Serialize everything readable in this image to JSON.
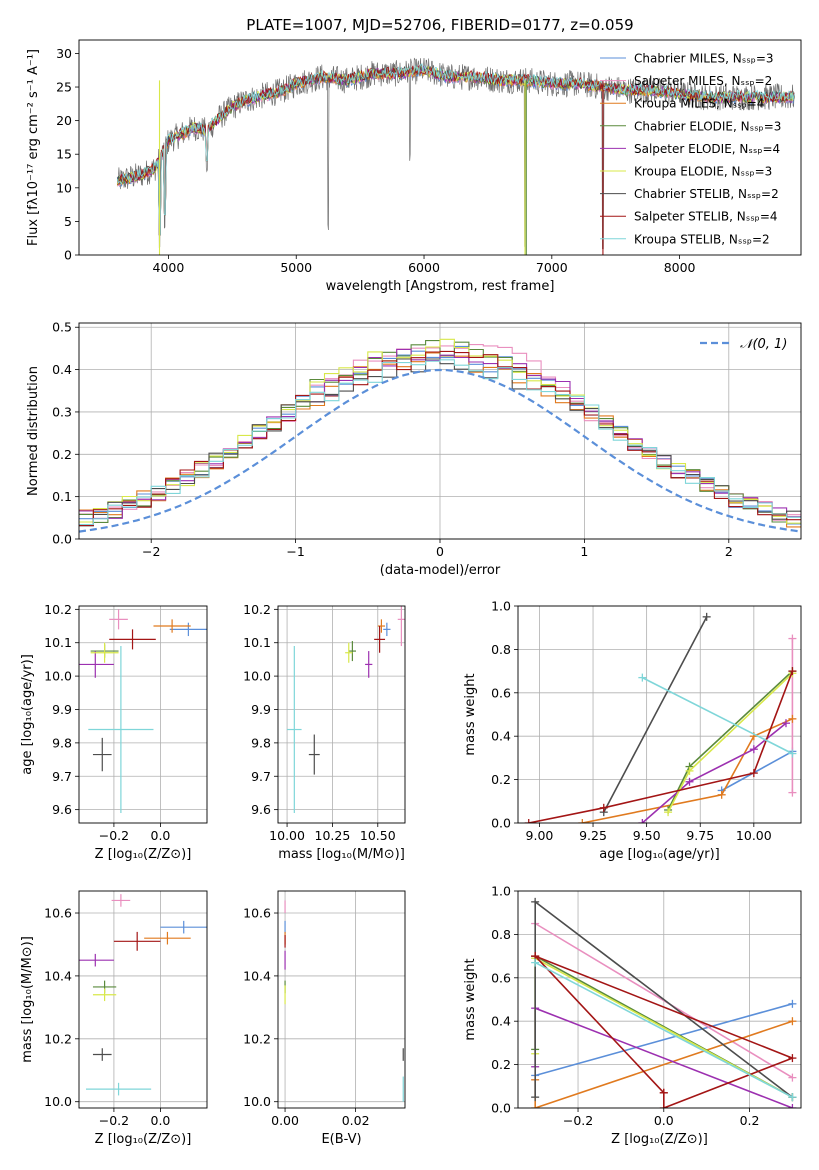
{
  "title": "PLATE=1007, MJD=52706, FIBERID=0177, z=0.059",
  "colors": {
    "chabrier_miles": "#5b8fd9",
    "salpeter_miles": "#e98fbf",
    "kroupa_miles": "#e07a1f",
    "chabrier_elodie": "#5a8a3c",
    "salpeter_elodie": "#9c30b0",
    "kroupa_elodie": "#d8e84a",
    "chabrier_stelib": "#4d4d4d",
    "salpeter_stelib": "#a31515",
    "kroupa_stelib": "#7fd6d9",
    "data": "#6e6e6e",
    "normal": "#5b8fd9"
  },
  "chart_data": [
    {
      "id": "spectrum",
      "type": "line",
      "xlabel": "wavelength [Angstrom, rest frame]",
      "ylabel": "Flux [fλ10⁻¹⁷ erg cm⁻² s⁻¹ A⁻¹]",
      "xlim": [
        3300,
        8950
      ],
      "ylim": [
        0,
        32
      ],
      "xticks": [
        4000,
        5000,
        6000,
        7000,
        8000
      ],
      "yticks": [
        0,
        5,
        10,
        15,
        20,
        25,
        30
      ],
      "legend_position": "top-right",
      "legend": [
        "Chabrier MILES, Nₛₛₚ=3",
        "Salpeter MILES, Nₛₛₚ=2",
        "Kroupa MILES, Nₛₛₚ=4",
        "Chabrier ELODIE, Nₛₛₚ=3",
        "Salpeter ELODIE, Nₛₛₚ=4",
        "Kroupa ELODIE, Nₛₛₚ=3",
        "Chabrier STELIB, Nₛₛₚ=2",
        "Salpeter STELIB, Nₛₛₚ=4",
        "Kroupa STELIB, Nₛₛₚ=2"
      ],
      "continuum": {
        "wavelength": [
          3600,
          3700,
          3800,
          3900,
          4000,
          4100,
          4200,
          4300,
          4400,
          4500,
          4600,
          4700,
          4800,
          4900,
          5000,
          5200,
          5400,
          5600,
          5800,
          6000,
          6200,
          6400,
          6600,
          6800,
          7000,
          7200,
          7400,
          7600,
          7800,
          8000,
          8200,
          8400,
          8600,
          8800,
          8900
        ],
        "flux": [
          11,
          11.5,
          12,
          13,
          17,
          18,
          19,
          18.5,
          20.5,
          22,
          23,
          23.5,
          24,
          24.5,
          25.5,
          26.5,
          26,
          27,
          27,
          27.5,
          26.5,
          26.5,
          26,
          26,
          25.5,
          25.5,
          25,
          24.5,
          24.5,
          24,
          23.5,
          23.5,
          23.5,
          23.5,
          23.5
        ]
      },
      "dips": [
        {
          "wavelength": 3930,
          "flux": 0
        },
        {
          "wavelength": 3970,
          "flux": 3
        },
        {
          "wavelength": 4300,
          "flux": 11
        },
        {
          "wavelength": 5250,
          "flux": 3
        },
        {
          "wavelength": 5890,
          "flux": 14
        },
        {
          "wavelength": 6790,
          "flux": 0
        },
        {
          "wavelength": 7400,
          "flux": 0
        }
      ]
    },
    {
      "id": "residuals",
      "type": "histogram",
      "xlabel": "(data-model)/error",
      "ylabel": "Normed distribution",
      "xlim": [
        -2.5,
        2.5
      ],
      "ylim": [
        0,
        0.51
      ],
      "xticks": [
        -2,
        -1,
        0,
        1,
        2
      ],
      "yticks": [
        0,
        0.1,
        0.2,
        0.3,
        0.4,
        0.5
      ],
      "grid": true,
      "legend_position": "top-right",
      "legend": [
        "𝒩(0, 1)"
      ],
      "bin_width": 0.1,
      "bin_start": -2.5,
      "histogram_series": [
        {
          "color_key": "chabrier_miles",
          "jitter": 0.005
        },
        {
          "color_key": "salpeter_miles",
          "jitter": 0.025
        },
        {
          "color_key": "kroupa_miles",
          "jitter": -0.005
        },
        {
          "color_key": "chabrier_elodie",
          "jitter": 0.015
        },
        {
          "color_key": "salpeter_elodie",
          "jitter": 0.01
        },
        {
          "color_key": "kroupa_elodie",
          "jitter": 0.02
        },
        {
          "color_key": "chabrier_stelib",
          "jitter": -0.01
        },
        {
          "color_key": "salpeter_stelib",
          "jitter": 0.0
        },
        {
          "color_key": "kroupa_stelib",
          "jitter": -0.015
        }
      ]
    },
    {
      "id": "age_vs_Z",
      "type": "errorbar",
      "xlabel": "Z [log₁₀(Z/Z⊙)]",
      "ylabel": "age  [log₁₀(age/yr)]",
      "xlim": [
        -0.35,
        0.2
      ],
      "ylim": [
        9.56,
        10.21
      ],
      "xticks": [
        -0.2,
        0.0
      ],
      "yticks": [
        9.6,
        9.7,
        9.8,
        9.9,
        10.0,
        10.1,
        10.2
      ],
      "points": [
        {
          "color_key": "chabrier_miles",
          "x": 0.12,
          "xerr": 0.08,
          "y": 10.14,
          "yerr": 0.02
        },
        {
          "color_key": "salpeter_miles",
          "x": -0.18,
          "xerr": 0.04,
          "y": 10.17,
          "yerr": 0.03
        },
        {
          "color_key": "kroupa_miles",
          "x": 0.05,
          "xerr": 0.08,
          "y": 10.15,
          "yerr": 0.02
        },
        {
          "color_key": "chabrier_elodie",
          "x": -0.24,
          "xerr": 0.06,
          "y": 10.075,
          "yerr": 0.02
        },
        {
          "color_key": "salpeter_elodie",
          "x": -0.28,
          "xerr": 0.08,
          "y": 10.035,
          "yerr": 0.04
        },
        {
          "color_key": "kroupa_elodie",
          "x": -0.24,
          "xerr": 0.06,
          "y": 10.07,
          "yerr": 0.03
        },
        {
          "color_key": "chabrier_stelib",
          "x": -0.25,
          "xerr": 0.04,
          "y": 9.765,
          "yerr": 0.05
        },
        {
          "color_key": "salpeter_stelib",
          "x": -0.12,
          "xerr": 0.1,
          "y": 10.11,
          "yerr": 0.03
        },
        {
          "color_key": "kroupa_stelib",
          "x": -0.17,
          "xerr": 0.14,
          "y": 9.84,
          "yerr": 0.25
        }
      ]
    },
    {
      "id": "age_vs_mass",
      "type": "errorbar",
      "xlabel": "mass [log₁₀(M/M⊙)]",
      "ylabel": "",
      "xlim": [
        9.95,
        10.65
      ],
      "ylim": [
        9.56,
        10.21
      ],
      "xticks": [
        10.0,
        10.25,
        10.5
      ],
      "ytick_labels": true,
      "yticks": [
        9.6,
        9.7,
        9.8,
        9.9,
        10.0,
        10.1,
        10.2
      ],
      "points": [
        {
          "color_key": "chabrier_miles",
          "x": 10.55,
          "xerr": 0.02,
          "y": 10.14,
          "yerr": 0.02
        },
        {
          "color_key": "salpeter_miles",
          "x": 10.63,
          "xerr": 0.02,
          "y": 10.17,
          "yerr": 0.08
        },
        {
          "color_key": "kroupa_miles",
          "x": 10.52,
          "xerr": 0.02,
          "y": 10.15,
          "yerr": 0.02
        },
        {
          "color_key": "chabrier_elodie",
          "x": 10.36,
          "xerr": 0.02,
          "y": 10.075,
          "yerr": 0.03
        },
        {
          "color_key": "salpeter_elodie",
          "x": 10.45,
          "xerr": 0.02,
          "y": 10.035,
          "yerr": 0.04
        },
        {
          "color_key": "kroupa_elodie",
          "x": 10.34,
          "xerr": 0.02,
          "y": 10.07,
          "yerr": 0.03
        },
        {
          "color_key": "chabrier_stelib",
          "x": 10.15,
          "xerr": 0.03,
          "y": 9.765,
          "yerr": 0.06
        },
        {
          "color_key": "salpeter_stelib",
          "x": 10.51,
          "xerr": 0.03,
          "y": 10.11,
          "yerr": 0.04
        },
        {
          "color_key": "kroupa_stelib",
          "x": 10.04,
          "xerr": 0.04,
          "y": 9.84,
          "yerr": 0.25
        }
      ]
    },
    {
      "id": "weight_vs_age",
      "type": "line",
      "xlabel": "age  [log₁₀(age/yr)]",
      "ylabel": "mass weight",
      "xlim": [
        8.9,
        10.22
      ],
      "ylim": [
        0,
        1.0
      ],
      "xticks": [
        9.0,
        9.25,
        9.5,
        9.75,
        10.0
      ],
      "yticks": [
        0,
        0.2,
        0.4,
        0.6,
        0.8,
        1.0
      ],
      "grid": true,
      "series": [
        {
          "color_key": "chabrier_miles",
          "x": [
            9.85,
            10.18
          ],
          "y": [
            0.15,
            0.33
          ]
        },
        {
          "color_key": "salpeter_miles",
          "x": [
            10.18,
            10.18
          ],
          "y": [
            0.14,
            0.85
          ]
        },
        {
          "color_key": "kroupa_miles",
          "x": [
            9.2,
            9.85,
            10.0,
            10.18
          ],
          "y": [
            0.0,
            0.13,
            0.4,
            0.48
          ]
        },
        {
          "color_key": "chabrier_elodie",
          "x": [
            9.6,
            9.7,
            10.18
          ],
          "y": [
            0.06,
            0.26,
            0.7
          ]
        },
        {
          "color_key": "salpeter_elodie",
          "x": [
            9.48,
            9.7,
            10.0,
            10.15
          ],
          "y": [
            0.0,
            0.19,
            0.34,
            0.46
          ]
        },
        {
          "color_key": "kroupa_elodie",
          "x": [
            9.6,
            9.7,
            10.18
          ],
          "y": [
            0.05,
            0.24,
            0.69
          ]
        },
        {
          "color_key": "chabrier_stelib",
          "x": [
            9.3,
            9.78
          ],
          "y": [
            0.05,
            0.95
          ]
        },
        {
          "color_key": "salpeter_stelib",
          "x": [
            8.95,
            9.3,
            10.0,
            10.18
          ],
          "y": [
            0.0,
            0.07,
            0.23,
            0.7
          ]
        },
        {
          "color_key": "kroupa_stelib",
          "x": [
            9.48,
            10.18
          ],
          "y": [
            0.67,
            0.32
          ]
        }
      ]
    },
    {
      "id": "mass_vs_Z",
      "type": "errorbar",
      "xlabel": "Z [log₁₀(Z/Z⊙)]",
      "ylabel": "mass [log₁₀(M/M⊙)]",
      "xlim": [
        -0.35,
        0.2
      ],
      "ylim": [
        9.98,
        10.67
      ],
      "xticks": [
        -0.2,
        0.0
      ],
      "yticks": [
        10.0,
        10.2,
        10.4,
        10.6
      ],
      "points": [
        {
          "color_key": "chabrier_miles",
          "x": 0.1,
          "xerr": 0.1,
          "y": 10.555,
          "yerr": 0.02
        },
        {
          "color_key": "salpeter_miles",
          "x": -0.17,
          "xerr": 0.04,
          "y": 10.64,
          "yerr": 0.02
        },
        {
          "color_key": "kroupa_miles",
          "x": 0.03,
          "xerr": 0.1,
          "y": 10.52,
          "yerr": 0.02
        },
        {
          "color_key": "chabrier_elodie",
          "x": -0.24,
          "xerr": 0.05,
          "y": 10.365,
          "yerr": 0.02
        },
        {
          "color_key": "salpeter_elodie",
          "x": -0.28,
          "xerr": 0.08,
          "y": 10.45,
          "yerr": 0.02
        },
        {
          "color_key": "kroupa_elodie",
          "x": -0.24,
          "xerr": 0.05,
          "y": 10.34,
          "yerr": 0.02
        },
        {
          "color_key": "chabrier_stelib",
          "x": -0.25,
          "xerr": 0.04,
          "y": 10.15,
          "yerr": 0.02
        },
        {
          "color_key": "salpeter_stelib",
          "x": -0.1,
          "xerr": 0.1,
          "y": 10.51,
          "yerr": 0.03
        },
        {
          "color_key": "kroupa_stelib",
          "x": -0.18,
          "xerr": 0.14,
          "y": 10.04,
          "yerr": 0.02
        }
      ]
    },
    {
      "id": "mass_vs_ebv",
      "type": "errorbar",
      "xlabel": "E(B-V)",
      "ylabel": "",
      "xlim": [
        -0.002,
        0.034
      ],
      "ylim": [
        9.98,
        10.67
      ],
      "xticks": [
        0.0,
        0.02
      ],
      "yticks": [
        10.0,
        10.2,
        10.4,
        10.6
      ],
      "points": [
        {
          "color_key": "chabrier_miles",
          "x": 0.0,
          "xerr": 0,
          "y": 10.555,
          "yerr": 0.02
        },
        {
          "color_key": "salpeter_miles",
          "x": 0.0,
          "xerr": 0,
          "y": 10.62,
          "yerr": 0.02
        },
        {
          "color_key": "kroupa_miles",
          "x": 0.0,
          "xerr": 0,
          "y": 10.52,
          "yerr": 0.02
        },
        {
          "color_key": "chabrier_elodie",
          "x": 0.0,
          "xerr": 0,
          "y": 10.365,
          "yerr": 0.02
        },
        {
          "color_key": "salpeter_elodie",
          "x": 0.0,
          "xerr": 0,
          "y": 10.45,
          "yerr": 0.03
        },
        {
          "color_key": "kroupa_elodie",
          "x": 0.0,
          "xerr": 0,
          "y": 10.34,
          "yerr": 0.03
        },
        {
          "color_key": "chabrier_stelib",
          "x": 0.0335,
          "xerr": 0,
          "y": 10.15,
          "yerr": 0.02
        },
        {
          "color_key": "salpeter_stelib",
          "x": 0.0,
          "xerr": 0,
          "y": 10.51,
          "yerr": 0.02
        },
        {
          "color_key": "kroupa_stelib",
          "x": 0.0335,
          "xerr": 0,
          "y": 10.04,
          "yerr": 0.04
        }
      ]
    },
    {
      "id": "weight_vs_Z",
      "type": "line",
      "xlabel": "Z [log₁₀(Z/Z⊙)]",
      "ylabel": "mass weight",
      "xlim": [
        -0.34,
        0.32
      ],
      "ylim": [
        0,
        1.0
      ],
      "xticks": [
        -0.2,
        0.0,
        0.2
      ],
      "yticks": [
        0,
        0.2,
        0.4,
        0.6,
        0.8,
        1.0
      ],
      "grid": true,
      "series": [
        {
          "color_key": "chabrier_miles",
          "x": [
            -0.3,
            0.3
          ],
          "y": [
            0.15,
            0.48
          ]
        },
        {
          "color_key": "salpeter_miles",
          "x": [
            -0.3,
            0.3
          ],
          "y": [
            0.85,
            0.14
          ]
        },
        {
          "color_key": "kroupa_miles",
          "x": [
            -0.3,
            -0.3,
            0.3
          ],
          "y": [
            0.13,
            0.0,
            0.4
          ]
        },
        {
          "color_key": "chabrier_elodie",
          "x": [
            -0.3,
            -0.3,
            0.3
          ],
          "y": [
            0.27,
            0.7,
            0.05
          ]
        },
        {
          "color_key": "salpeter_elodie",
          "x": [
            -0.3,
            -0.3,
            0.3
          ],
          "y": [
            0.19,
            0.46,
            0.0
          ]
        },
        {
          "color_key": "kroupa_elodie",
          "x": [
            -0.3,
            -0.3,
            0.3
          ],
          "y": [
            0.25,
            0.69,
            0.05
          ]
        },
        {
          "color_key": "chabrier_stelib",
          "x": [
            -0.3,
            -0.3,
            0.3
          ],
          "y": [
            0.05,
            0.95,
            0.05
          ]
        },
        {
          "color_key": "salpeter_stelib",
          "x": [
            -0.3,
            0.0,
            0.0,
            0.3,
            -0.3,
            0.0
          ],
          "y": [
            0.7,
            0.07,
            0.0,
            0.23,
            0.7,
            0.07
          ]
        },
        {
          "color_key": "kroupa_stelib",
          "x": [
            -0.3,
            0.3
          ],
          "y": [
            0.67,
            0.05
          ]
        }
      ]
    }
  ]
}
